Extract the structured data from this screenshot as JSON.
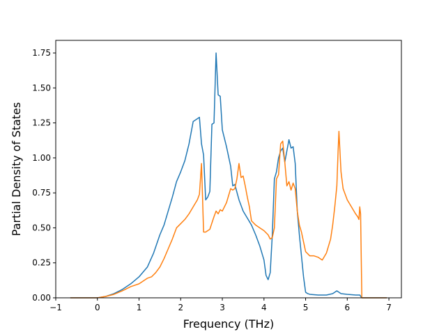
{
  "chart_data": {
    "type": "line",
    "title": "",
    "xlabel": "Frequency (THz)",
    "ylabel": "Partial Density of States",
    "xlim": [
      -1,
      7.3
    ],
    "ylim": [
      0,
      1.84
    ],
    "grid": false,
    "x_ticks": [
      -1,
      0,
      1,
      2,
      3,
      4,
      5,
      6,
      7
    ],
    "x_tick_labels": [
      "−1",
      "0",
      "1",
      "2",
      "3",
      "4",
      "5",
      "6",
      "7"
    ],
    "y_ticks": [
      0,
      0.25,
      0.5,
      0.75,
      1.0,
      1.25,
      1.5,
      1.75
    ],
    "y_tick_labels": [
      "0.00",
      "0.25",
      "0.50",
      "0.75",
      "1.00",
      "1.25",
      "1.50",
      "1.75"
    ],
    "series": [
      {
        "color": "#1f77b4",
        "x": [
          -0.65,
          0.0,
          0.2,
          0.4,
          0.6,
          0.8,
          1.0,
          1.2,
          1.35,
          1.5,
          1.6,
          1.7,
          1.8,
          1.9,
          2.0,
          2.1,
          2.2,
          2.3,
          2.45,
          2.5,
          2.55,
          2.6,
          2.65,
          2.7,
          2.75,
          2.8,
          2.85,
          2.9,
          2.95,
          3.0,
          3.1,
          3.2,
          3.25,
          3.3,
          3.4,
          3.5,
          3.6,
          3.7,
          3.8,
          3.9,
          4.0,
          4.05,
          4.1,
          4.15,
          4.2,
          4.25,
          4.3,
          4.35,
          4.4,
          4.45,
          4.5,
          4.55,
          4.6,
          4.65,
          4.7,
          4.75,
          4.8,
          4.85,
          4.9,
          4.95,
          5.0,
          5.05,
          5.1,
          5.3,
          5.5,
          5.65,
          5.75,
          5.8,
          5.85,
          6.0,
          6.2,
          6.3,
          6.35,
          6.95
        ],
        "y": [
          0.0,
          0.0,
          0.01,
          0.03,
          0.06,
          0.1,
          0.15,
          0.22,
          0.32,
          0.45,
          0.52,
          0.62,
          0.72,
          0.83,
          0.9,
          0.98,
          1.1,
          1.26,
          1.29,
          1.1,
          1.02,
          0.7,
          0.72,
          0.76,
          1.24,
          1.25,
          1.75,
          1.45,
          1.44,
          1.2,
          1.08,
          0.94,
          0.8,
          0.81,
          0.7,
          0.62,
          0.57,
          0.52,
          0.45,
          0.37,
          0.27,
          0.16,
          0.13,
          0.18,
          0.45,
          0.85,
          0.9,
          1.0,
          1.05,
          1.07,
          0.97,
          1.05,
          1.13,
          1.07,
          1.08,
          0.96,
          0.62,
          0.45,
          0.3,
          0.15,
          0.04,
          0.03,
          0.025,
          0.02,
          0.02,
          0.03,
          0.05,
          0.04,
          0.03,
          0.025,
          0.02,
          0.02,
          0.0,
          0.0
        ]
      },
      {
        "color": "#ff7f0e",
        "x": [
          -0.65,
          0.0,
          0.2,
          0.4,
          0.6,
          0.8,
          1.0,
          1.1,
          1.2,
          1.3,
          1.4,
          1.5,
          1.6,
          1.7,
          1.8,
          1.9,
          2.0,
          2.1,
          2.2,
          2.3,
          2.4,
          2.45,
          2.5,
          2.55,
          2.6,
          2.7,
          2.8,
          2.85,
          2.9,
          2.95,
          3.0,
          3.1,
          3.2,
          3.25,
          3.3,
          3.35,
          3.4,
          3.45,
          3.5,
          3.55,
          3.6,
          3.65,
          3.7,
          3.8,
          3.9,
          4.0,
          4.1,
          4.15,
          4.2,
          4.25,
          4.3,
          4.35,
          4.4,
          4.45,
          4.5,
          4.55,
          4.6,
          4.65,
          4.7,
          4.75,
          4.8,
          4.85,
          4.9,
          4.95,
          5.0,
          5.1,
          5.2,
          5.3,
          5.35,
          5.4,
          5.5,
          5.6,
          5.65,
          5.7,
          5.75,
          5.78,
          5.8,
          5.85,
          5.9,
          6.0,
          6.1,
          6.2,
          6.25,
          6.28,
          6.3,
          6.32,
          6.35,
          6.95
        ],
        "y": [
          0.0,
          0.0,
          0.01,
          0.025,
          0.05,
          0.08,
          0.1,
          0.12,
          0.14,
          0.15,
          0.18,
          0.22,
          0.28,
          0.35,
          0.42,
          0.5,
          0.53,
          0.56,
          0.6,
          0.65,
          0.7,
          0.74,
          0.96,
          0.47,
          0.47,
          0.49,
          0.58,
          0.62,
          0.6,
          0.63,
          0.62,
          0.68,
          0.78,
          0.77,
          0.78,
          0.85,
          0.96,
          0.86,
          0.87,
          0.8,
          0.72,
          0.65,
          0.55,
          0.52,
          0.5,
          0.48,
          0.45,
          0.42,
          0.43,
          0.5,
          0.85,
          0.88,
          1.1,
          1.12,
          0.97,
          0.8,
          0.83,
          0.77,
          0.82,
          0.78,
          0.62,
          0.52,
          0.47,
          0.4,
          0.33,
          0.3,
          0.3,
          0.29,
          0.28,
          0.27,
          0.32,
          0.42,
          0.52,
          0.65,
          0.8,
          1.05,
          1.19,
          0.9,
          0.78,
          0.7,
          0.65,
          0.6,
          0.58,
          0.56,
          0.65,
          0.6,
          0.0,
          0.0
        ]
      }
    ]
  }
}
